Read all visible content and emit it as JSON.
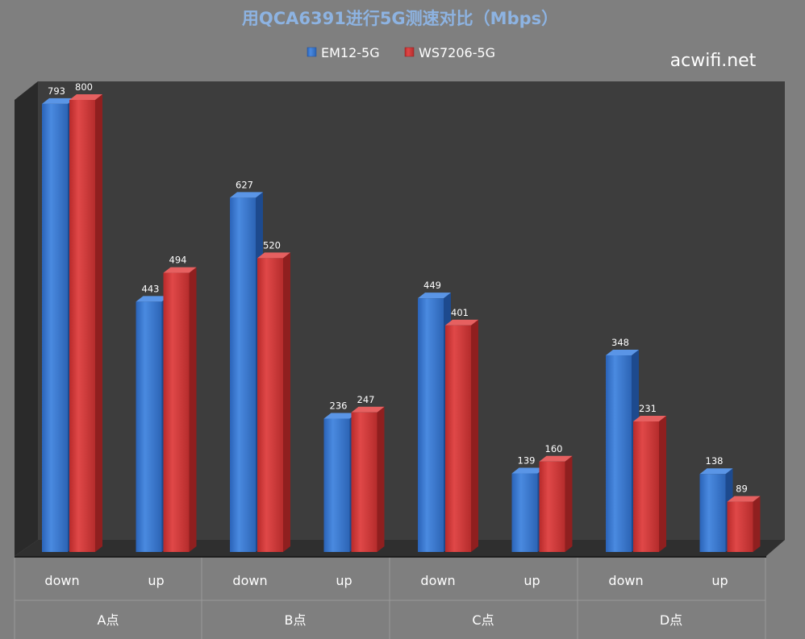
{
  "chart_data": {
    "type": "bar",
    "title": "用QCA6391进行5G测速对比（Mbps）",
    "watermark": "acwifi.net",
    "groups": [
      "A点",
      "B点",
      "C点",
      "D点"
    ],
    "categories": [
      "down",
      "up",
      "down",
      "up",
      "down",
      "up",
      "down",
      "up"
    ],
    "series": [
      {
        "name": "EM12-5G",
        "color": "#3b7bd4",
        "values": [
          793,
          443,
          627,
          236,
          449,
          139,
          348,
          138
        ]
      },
      {
        "name": "WS7206-5G",
        "color": "#d33b3b",
        "values": [
          800,
          494,
          520,
          247,
          401,
          160,
          231,
          89
        ]
      }
    ],
    "ylim": [
      0,
      800
    ],
    "legend_position": "top-center",
    "grid": false
  }
}
